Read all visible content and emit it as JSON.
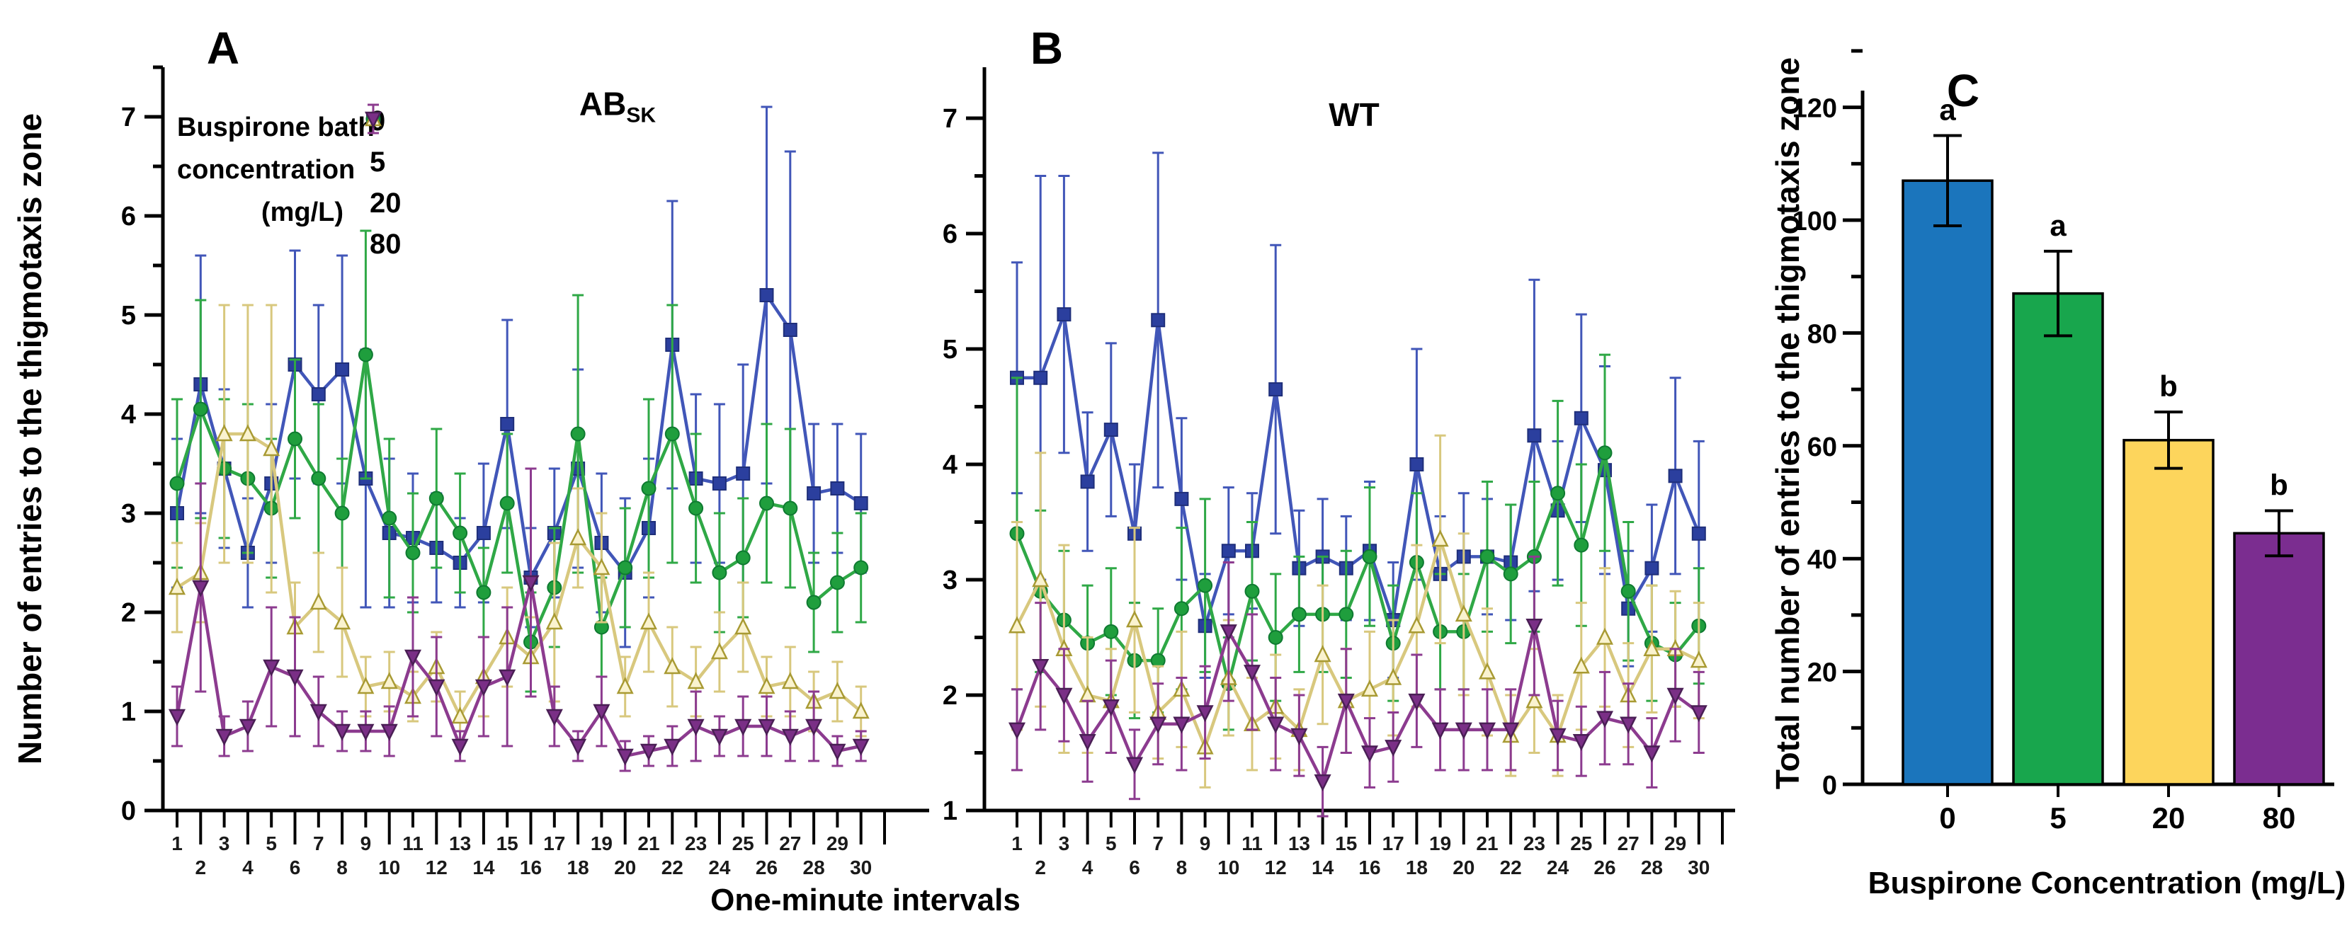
{
  "figure": {
    "background": "#ffffff",
    "shared_xlabel": "One-minute intervals"
  },
  "legend": {
    "title_lines": [
      "Buspirone bath",
      "concentration",
      "(mg/L)"
    ],
    "entries": [
      {
        "label": "0",
        "series_index": 0
      },
      {
        "label": "5",
        "series_index": 1
      },
      {
        "label": "20",
        "series_index": 2
      },
      {
        "label": "80",
        "series_index": 3
      }
    ]
  },
  "chart_data": [
    {
      "id": "A",
      "type": "line",
      "panel_label": "A",
      "title_main": "AB",
      "title_sub": "SK",
      "xlabel": "One-minute intervals",
      "ylabel": "Number of entries to the thigmotaxis zone",
      "ylim": [
        0,
        7.5
      ],
      "yticks": [
        0,
        1,
        2,
        3,
        4,
        5,
        6,
        7
      ],
      "x": [
        1,
        2,
        3,
        4,
        5,
        6,
        7,
        8,
        9,
        10,
        11,
        12,
        13,
        14,
        15,
        16,
        17,
        18,
        19,
        20,
        21,
        22,
        23,
        24,
        25,
        26,
        27,
        28,
        29,
        30
      ],
      "grid": false,
      "series": [
        {
          "name": "0",
          "marker": "square",
          "color": "#4156b8",
          "marker_fill": "#2b3f9e",
          "marker_edge": "#1f2f7a",
          "values": [
            3.0,
            4.3,
            3.45,
            2.6,
            3.3,
            4.5,
            4.2,
            4.45,
            3.35,
            2.8,
            2.75,
            2.65,
            2.5,
            2.8,
            3.9,
            2.35,
            2.8,
            3.45,
            2.7,
            2.4,
            2.85,
            4.7,
            3.35,
            3.3,
            3.4,
            5.2,
            4.85,
            3.2,
            3.25,
            3.1
          ],
          "err": [
            0.75,
            1.3,
            0.8,
            0.55,
            0.8,
            1.15,
            0.9,
            1.15,
            1.3,
            0.75,
            0.65,
            0.55,
            0.45,
            0.7,
            1.05,
            0.5,
            0.65,
            1.0,
            0.7,
            0.75,
            0.7,
            1.45,
            0.85,
            0.8,
            1.1,
            1.9,
            1.8,
            0.7,
            0.65,
            0.7
          ]
        },
        {
          "name": "5",
          "marker": "circle",
          "color": "#2fa846",
          "marker_fill": "#1f9e3d",
          "marker_edge": "#0f7a31",
          "values": [
            3.3,
            4.05,
            3.45,
            3.35,
            3.05,
            3.75,
            3.35,
            3.0,
            4.6,
            2.95,
            2.6,
            3.15,
            2.8,
            2.2,
            3.1,
            1.7,
            2.25,
            3.8,
            1.85,
            2.45,
            3.25,
            3.8,
            3.05,
            2.4,
            2.55,
            3.1,
            3.05,
            2.1,
            2.3,
            2.45
          ],
          "err": [
            0.85,
            1.1,
            0.7,
            0.75,
            0.7,
            0.8,
            0.75,
            0.55,
            1.25,
            0.8,
            0.6,
            0.7,
            0.6,
            0.45,
            0.7,
            0.5,
            0.6,
            1.4,
            0.5,
            0.6,
            0.9,
            1.3,
            0.75,
            0.6,
            0.6,
            0.8,
            0.8,
            0.5,
            0.5,
            0.55
          ]
        },
        {
          "name": "20",
          "marker": "triangle-up",
          "color": "#d8c87e",
          "marker_fill": "#faf3cf",
          "marker_edge": "#a89a33",
          "values": [
            2.25,
            2.4,
            3.8,
            3.8,
            3.65,
            1.85,
            2.1,
            1.9,
            1.25,
            1.3,
            1.15,
            1.45,
            0.95,
            1.35,
            1.75,
            1.55,
            1.9,
            2.75,
            2.45,
            1.25,
            1.9,
            1.45,
            1.3,
            1.6,
            1.85,
            1.25,
            1.3,
            1.1,
            1.2,
            1.0
          ],
          "err": [
            0.45,
            0.5,
            1.3,
            1.3,
            1.45,
            0.45,
            0.5,
            0.55,
            0.3,
            0.3,
            0.25,
            0.35,
            0.25,
            0.4,
            0.5,
            0.4,
            0.8,
            0.5,
            0.55,
            0.3,
            0.5,
            0.4,
            0.35,
            0.4,
            0.45,
            0.3,
            0.35,
            0.3,
            0.3,
            0.25
          ]
        },
        {
          "name": "80",
          "marker": "triangle-down",
          "color": "#8c3b8f",
          "marker_fill": "#7a2f86",
          "marker_edge": "#4a1f55",
          "values": [
            0.95,
            2.25,
            0.75,
            0.85,
            1.45,
            1.35,
            1.0,
            0.8,
            0.8,
            0.8,
            1.55,
            1.25,
            0.65,
            1.25,
            1.35,
            2.3,
            0.95,
            0.65,
            1.0,
            0.55,
            0.6,
            0.65,
            0.85,
            0.75,
            0.85,
            0.85,
            0.75,
            0.85,
            0.6,
            0.65
          ],
          "err": [
            0.3,
            1.05,
            0.2,
            0.25,
            0.6,
            0.6,
            0.35,
            0.2,
            0.2,
            0.25,
            0.6,
            0.5,
            0.15,
            0.5,
            0.7,
            1.15,
            0.3,
            0.15,
            0.35,
            0.15,
            0.15,
            0.2,
            0.35,
            0.2,
            0.3,
            0.3,
            0.25,
            0.35,
            0.15,
            0.15
          ]
        }
      ]
    },
    {
      "id": "B",
      "type": "line",
      "panel_label": "B",
      "title": "WT",
      "xlabel": "One-minute intervals",
      "ylabel": "",
      "ylim": [
        1,
        7.44
      ],
      "yticks": [
        1,
        2,
        3,
        4,
        5,
        6,
        7
      ],
      "x": [
        1,
        2,
        3,
        4,
        5,
        6,
        7,
        8,
        9,
        10,
        11,
        12,
        13,
        14,
        15,
        16,
        17,
        18,
        19,
        20,
        21,
        22,
        23,
        24,
        25,
        26,
        27,
        28,
        29,
        30
      ],
      "grid": false,
      "series": [
        {
          "name": "0",
          "marker": "square",
          "color": "#4156b8",
          "marker_fill": "#2b3f9e",
          "marker_edge": "#1f2f7a",
          "values": [
            4.75,
            4.75,
            5.3,
            3.85,
            4.3,
            3.4,
            5.25,
            3.7,
            2.6,
            3.25,
            3.25,
            4.65,
            3.1,
            3.2,
            3.1,
            3.25,
            2.65,
            4.0,
            3.05,
            3.2,
            3.2,
            3.15,
            4.25,
            3.6,
            4.4,
            3.95,
            2.75,
            3.1,
            3.9,
            3.4
          ],
          "err": [
            1.0,
            1.75,
            1.2,
            0.6,
            0.75,
            0.6,
            1.45,
            0.7,
            0.45,
            0.55,
            0.5,
            1.25,
            0.5,
            0.5,
            0.45,
            0.6,
            0.5,
            1.0,
            0.5,
            0.55,
            0.5,
            0.5,
            1.35,
            0.6,
            0.9,
            0.9,
            0.5,
            0.55,
            0.85,
            0.8
          ]
        },
        {
          "name": "5",
          "marker": "circle",
          "color": "#2fa846",
          "marker_fill": "#1f9e3d",
          "marker_edge": "#0f7a31",
          "values": [
            3.4,
            2.9,
            2.65,
            2.45,
            2.55,
            2.3,
            2.3,
            2.75,
            2.95,
            2.1,
            2.9,
            2.5,
            2.7,
            2.7,
            2.7,
            3.2,
            2.45,
            3.15,
            2.55,
            2.55,
            3.2,
            3.05,
            3.2,
            3.75,
            3.3,
            4.1,
            2.9,
            2.45,
            2.35,
            2.6
          ],
          "err": [
            1.35,
            0.7,
            0.6,
            0.5,
            0.55,
            0.5,
            0.45,
            0.7,
            0.75,
            0.4,
            0.6,
            0.55,
            0.5,
            0.5,
            0.55,
            0.6,
            0.5,
            0.6,
            0.5,
            0.5,
            0.65,
            0.6,
            0.65,
            0.8,
            0.7,
            0.85,
            0.6,
            0.5,
            0.45,
            0.5
          ]
        },
        {
          "name": "20",
          "marker": "triangle-up",
          "color": "#d8c87e",
          "marker_fill": "#faf3cf",
          "marker_edge": "#a89a33",
          "values": [
            2.6,
            3.0,
            2.4,
            2.0,
            1.95,
            2.65,
            1.85,
            2.05,
            1.55,
            2.15,
            1.75,
            1.9,
            1.7,
            2.35,
            1.95,
            2.05,
            2.15,
            2.6,
            3.35,
            2.7,
            2.2,
            1.65,
            1.95,
            1.65,
            2.25,
            2.5,
            2.0,
            2.4,
            2.4,
            2.3
          ],
          "err": [
            0.9,
            1.1,
            0.9,
            0.5,
            0.45,
            0.8,
            0.4,
            0.5,
            0.35,
            0.5,
            0.4,
            0.45,
            0.35,
            0.6,
            0.45,
            0.5,
            0.5,
            0.7,
            0.9,
            0.7,
            0.55,
            0.35,
            0.45,
            0.35,
            0.55,
            0.6,
            0.45,
            0.55,
            0.5,
            0.5
          ]
        },
        {
          "name": "80",
          "marker": "triangle-down",
          "color": "#8c3b8f",
          "marker_fill": "#7a2f86",
          "marker_edge": "#4a1f55",
          "values": [
            1.7,
            2.25,
            2.0,
            1.6,
            1.9,
            1.4,
            1.75,
            1.75,
            1.85,
            2.55,
            2.2,
            1.75,
            1.65,
            1.25,
            1.95,
            1.5,
            1.55,
            1.95,
            1.7,
            1.7,
            1.7,
            1.7,
            2.6,
            1.65,
            1.6,
            1.8,
            1.75,
            1.5,
            2.0,
            1.85
          ],
          "err": [
            0.35,
            0.55,
            0.4,
            0.35,
            0.4,
            0.3,
            0.35,
            0.4,
            0.4,
            0.6,
            0.5,
            0.4,
            0.35,
            0.3,
            0.45,
            0.3,
            0.3,
            0.4,
            0.35,
            0.35,
            0.35,
            0.35,
            0.6,
            0.3,
            0.3,
            0.4,
            0.35,
            0.3,
            0.4,
            0.35
          ]
        }
      ]
    },
    {
      "id": "C",
      "type": "bar",
      "panel_label": "C",
      "xlabel": "Buspirone Concentration (mg/L)",
      "ylabel": "Total number of entries to the thigmotaxis zone",
      "ylim": [
        0,
        130
      ],
      "yticks": [
        0,
        20,
        40,
        60,
        80,
        100,
        120
      ],
      "categories": [
        "0",
        "5",
        "20",
        "80"
      ],
      "values": [
        107,
        87,
        61,
        44.5
      ],
      "errors": [
        8,
        7.5,
        5,
        4
      ],
      "sig_letters": [
        "a",
        "a",
        "b",
        "b"
      ],
      "bar_colors": [
        "#1b75bc",
        "#18a64d",
        "#fdd55c",
        "#7b2d90"
      ],
      "bar_edge": "#000000"
    }
  ]
}
